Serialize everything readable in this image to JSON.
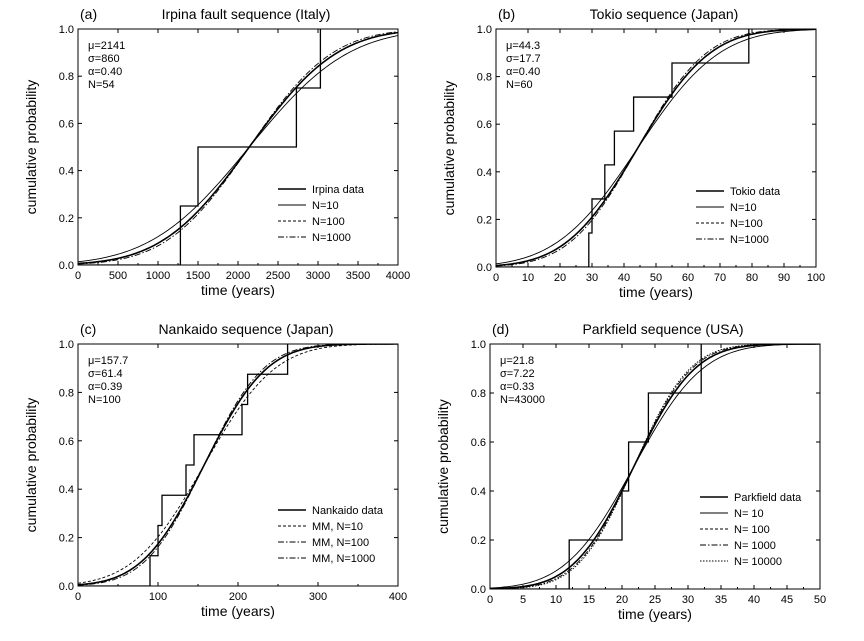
{
  "chart_data": [
    {
      "id": "a",
      "type": "line",
      "panel_label": "(a)",
      "title": "Irpina fault sequence (Italy)",
      "xlabel": "time (years)",
      "ylabel": "cumulative probability",
      "xlim": [
        0,
        4000
      ],
      "ylim": [
        0,
        1.0
      ],
      "xticks": [
        0,
        500,
        1000,
        1500,
        2000,
        2500,
        3000,
        3500,
        4000
      ],
      "yticks": [
        0.0,
        0.2,
        0.4,
        0.6,
        0.8,
        1.0
      ],
      "xtick_decimals": 0,
      "params": [
        "μ=2141",
        "σ=860",
        "α=0.40",
        "N=54"
      ],
      "legend_position": "bottom-right",
      "data_step": {
        "name": "Irpina data",
        "x": [
          0,
          1280,
          1280,
          1500,
          1500,
          2730,
          2730,
          3030,
          3030
        ],
        "y": [
          0,
          0,
          0.25,
          0.25,
          0.5,
          0.5,
          0.75,
          0.75,
          1.0
        ]
      },
      "model_series": [
        {
          "name": "N=10",
          "style": "thin",
          "mu": 2141,
          "sigma": 860,
          "spread": 1.13
        },
        {
          "name": "N=100",
          "style": "short-dash",
          "mu": 2141,
          "sigma": 860,
          "spread": 1.0
        },
        {
          "name": "N=1000",
          "style": "dash-dot",
          "mu": 2141,
          "sigma": 860,
          "spread": 0.95
        }
      ],
      "fitted_curve": {
        "mu": 2141,
        "sigma": 860
      }
    },
    {
      "id": "b",
      "type": "line",
      "panel_label": "(b)",
      "title": "Tokio sequence (Japan)",
      "xlabel": "time (years)",
      "ylabel": "cumulative probability",
      "xlim": [
        0,
        100
      ],
      "ylim": [
        0,
        1.0
      ],
      "xticks": [
        0,
        10,
        20,
        30,
        40,
        50,
        60,
        70,
        80,
        90,
        100
      ],
      "yticks": [
        0.0,
        0.2,
        0.4,
        0.6,
        0.8,
        1.0
      ],
      "xtick_decimals": 0,
      "params": [
        "μ=44.3",
        "σ=17.7",
        "α=0.40",
        "N=60"
      ],
      "legend_position": "bottom-right",
      "data_step": {
        "name": "Tokio data",
        "x": [
          0,
          29,
          29,
          30,
          30,
          31,
          31,
          34,
          34,
          37,
          37,
          43,
          43,
          55,
          55,
          79,
          79
        ],
        "y": [
          0,
          0,
          0.143,
          0.143,
          0.286,
          0.286,
          0.286,
          0.286,
          0.429,
          0.429,
          0.571,
          0.571,
          0.714,
          0.714,
          0.857,
          0.857,
          1.0
        ]
      },
      "model_series": [
        {
          "name": "N=10",
          "style": "thin",
          "mu": 44.3,
          "sigma": 17.7,
          "spread": 1.13
        },
        {
          "name": "N=100",
          "style": "short-dash",
          "mu": 44.3,
          "sigma": 17.7,
          "spread": 1.0
        },
        {
          "name": "N=1000",
          "style": "dash-dot",
          "mu": 44.3,
          "sigma": 17.7,
          "spread": 0.95
        }
      ],
      "fitted_curve": {
        "mu": 44.3,
        "sigma": 17.7
      }
    },
    {
      "id": "c",
      "type": "line",
      "panel_label": "(c)",
      "title": "Nankaido sequence (Japan)",
      "xlabel": "time (years)",
      "ylabel": "cumulative probability",
      "xlim": [
        0,
        400
      ],
      "ylim": [
        0,
        1.0
      ],
      "xticks": [
        0,
        100,
        200,
        300,
        400
      ],
      "yticks": [
        0.0,
        0.2,
        0.4,
        0.6,
        0.8,
        1.0
      ],
      "xtick_decimals": 0,
      "params": [
        "μ=157.7",
        "σ=61.4",
        "α=0.39",
        "N=100"
      ],
      "legend_position": "bottom-right",
      "data_step": {
        "name": "Nankaido data",
        "x": [
          0,
          90,
          90,
          100,
          100,
          105,
          105,
          110,
          110,
          135,
          135,
          145,
          145,
          155,
          155,
          205,
          205,
          212,
          212,
          262,
          262
        ],
        "y": [
          0,
          0,
          0.125,
          0.125,
          0.25,
          0.25,
          0.375,
          0.375,
          0.375,
          0.375,
          0.5,
          0.5,
          0.625,
          0.625,
          0.625,
          0.625,
          0.75,
          0.75,
          0.875,
          0.875,
          1.0
        ]
      },
      "model_series": [
        {
          "name": "MM, N=10",
          "style": "short-dash",
          "mu": 157.7,
          "sigma": 61.4,
          "spread": 1.13
        },
        {
          "name": "MM, N=100",
          "style": "dash-dot",
          "mu": 157.7,
          "sigma": 61.4,
          "spread": 1.0
        },
        {
          "name": "MM, N=1000",
          "style": "dash-dot",
          "mu": 157.7,
          "sigma": 61.4,
          "spread": 0.95
        }
      ],
      "fitted_curve": {
        "mu": 157.7,
        "sigma": 61.4
      }
    },
    {
      "id": "d",
      "type": "line",
      "panel_label": "(d)",
      "title": "Parkfield sequence (USA)",
      "xlabel": "time (years)",
      "ylabel": "cumulative probability",
      "xlim": [
        0,
        50
      ],
      "ylim": [
        0,
        1.0
      ],
      "xticks": [
        0,
        5,
        10,
        15,
        20,
        25,
        30,
        35,
        40,
        45,
        50
      ],
      "yticks": [
        0.0,
        0.2,
        0.4,
        0.6,
        0.8,
        1.0
      ],
      "xtick_decimals": 0,
      "params": [
        "μ=21.8",
        "σ=7.22",
        "α=0.33",
        "N=43000"
      ],
      "legend_position": "bottom-right",
      "data_step": {
        "name": "Parkfield data",
        "x": [
          0,
          12,
          12,
          20,
          20,
          21,
          21,
          24,
          24,
          32,
          32
        ],
        "y": [
          0,
          0,
          0.2,
          0.2,
          0.4,
          0.4,
          0.6,
          0.6,
          0.8,
          0.8,
          1.0
        ]
      },
      "model_series": [
        {
          "name": "N= 10",
          "style": "thin",
          "mu": 21.8,
          "sigma": 7.22,
          "spread": 1.13
        },
        {
          "name": "N= 100",
          "style": "short-dash",
          "mu": 21.8,
          "sigma": 7.22,
          "spread": 1.0
        },
        {
          "name": "N= 1000",
          "style": "dash-dot",
          "mu": 21.8,
          "sigma": 7.22,
          "spread": 0.95
        },
        {
          "name": "N= 10000",
          "style": "dotted",
          "mu": 21.8,
          "sigma": 7.22,
          "spread": 0.92
        }
      ],
      "fitted_curve": {
        "mu": 21.8,
        "sigma": 7.22
      }
    }
  ]
}
